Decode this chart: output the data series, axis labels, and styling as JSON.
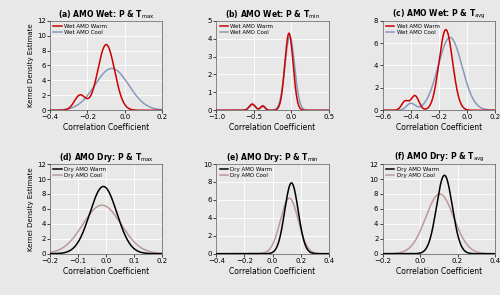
{
  "panels": [
    {
      "label": "(a) AMO Wet: P & T",
      "subscript": "max",
      "line1_label": "Wet AMO Warm",
      "line2_label": "Wet AMO Cool",
      "line1_color": "#cc0000",
      "line2_color": "#8899bb",
      "line1_components": [
        {
          "mean": -0.1,
          "std": 0.045,
          "peak": 8.8
        },
        {
          "mean": -0.24,
          "std": 0.03,
          "peak": 2.0
        }
      ],
      "line2_components": [
        {
          "mean": -0.07,
          "std": 0.09,
          "peak": 5.6
        }
      ],
      "xlim": [
        -0.4,
        0.2
      ],
      "xticks": [
        -0.4,
        -0.2,
        0.0,
        0.2
      ],
      "ylim": [
        0,
        12
      ],
      "yticks": [
        0,
        2,
        4,
        6,
        8,
        10,
        12
      ]
    },
    {
      "label": "(b) AMO Wet: P & T",
      "subscript": "min",
      "line1_label": "Wet AMO Warm",
      "line2_label": "Wet AMO Cool",
      "line1_color": "#cc0000",
      "line2_color": "#8899bb",
      "line1_components": [
        {
          "mean": -0.03,
          "std": 0.055,
          "peak": 4.3
        },
        {
          "mean": -0.52,
          "std": 0.04,
          "peak": 0.35
        },
        {
          "mean": -0.38,
          "std": 0.03,
          "peak": 0.25
        }
      ],
      "line2_components": [
        {
          "mean": -0.02,
          "std": 0.065,
          "peak": 4.1
        },
        {
          "mean": -0.52,
          "std": 0.04,
          "peak": 0.3
        },
        {
          "mean": -0.38,
          "std": 0.03,
          "peak": 0.22
        }
      ],
      "xlim": [
        -1.0,
        0.5
      ],
      "xticks": [
        -1.0,
        -0.5,
        0.0,
        0.5
      ],
      "ylim": [
        0,
        5
      ],
      "yticks": [
        0,
        1,
        2,
        3,
        4,
        5
      ]
    },
    {
      "label": "(c) AMO Wet: P & T",
      "subscript": "avg",
      "line1_label": "Wet AMO Warm",
      "line2_label": "Wet AMO Cool",
      "line1_color": "#cc0000",
      "line2_color": "#8899bb",
      "line1_components": [
        {
          "mean": -0.15,
          "std": 0.048,
          "peak": 7.2
        },
        {
          "mean": -0.37,
          "std": 0.028,
          "peak": 1.3
        },
        {
          "mean": -0.44,
          "std": 0.025,
          "peak": 0.8
        }
      ],
      "line2_components": [
        {
          "mean": -0.12,
          "std": 0.085,
          "peak": 6.5
        },
        {
          "mean": -0.4,
          "std": 0.03,
          "peak": 0.6
        }
      ],
      "xlim": [
        -0.6,
        0.2
      ],
      "xticks": [
        -0.6,
        -0.4,
        -0.2,
        0.0,
        0.2
      ],
      "ylim": [
        0,
        8
      ],
      "yticks": [
        0,
        2,
        4,
        6,
        8
      ]
    },
    {
      "label": "(d) AMO Dry: P & T",
      "subscript": "max",
      "line1_label": "Dry AMO Warm",
      "line2_label": "Dry AMO Cool",
      "line1_color": "#000000",
      "line2_color": "#bb9999",
      "line1_components": [
        {
          "mean": -0.01,
          "std": 0.048,
          "peak": 9.0
        }
      ],
      "line2_components": [
        {
          "mean": -0.015,
          "std": 0.068,
          "peak": 6.5
        }
      ],
      "xlim": [
        -0.2,
        0.2
      ],
      "xticks": [
        -0.2,
        -0.1,
        0.0,
        0.1,
        0.2
      ],
      "ylim": [
        0,
        12
      ],
      "yticks": [
        0,
        2,
        4,
        6,
        8,
        10,
        12
      ]
    },
    {
      "label": "(e) AMO Dry: P & T",
      "subscript": "min",
      "line1_label": "Dry AMO Warm",
      "line2_label": "Dry AMO Cool",
      "line1_color": "#000000",
      "line2_color": "#bb9999",
      "line1_components": [
        {
          "mean": 0.135,
          "std": 0.048,
          "peak": 7.9
        }
      ],
      "line2_components": [
        {
          "mean": 0.12,
          "std": 0.063,
          "peak": 6.2
        }
      ],
      "xlim": [
        -0.4,
        0.4
      ],
      "xticks": [
        -0.4,
        -0.2,
        0.0,
        0.2,
        0.4
      ],
      "ylim": [
        0,
        10
      ],
      "yticks": [
        0,
        2,
        4,
        6,
        8,
        10
      ]
    },
    {
      "label": "(f) AMO Dry: P & T",
      "subscript": "avg",
      "line1_label": "Dry AMO Warm",
      "line2_label": "Dry AMO Cool",
      "line1_color": "#000000",
      "line2_color": "#bb9999",
      "line1_components": [
        {
          "mean": 0.13,
          "std": 0.042,
          "peak": 10.5
        }
      ],
      "line2_components": [
        {
          "mean": 0.105,
          "std": 0.075,
          "peak": 8.0
        }
      ],
      "xlim": [
        -0.2,
        0.4
      ],
      "xticks": [
        -0.2,
        0.0,
        0.2,
        0.4
      ],
      "ylim": [
        0,
        12
      ],
      "yticks": [
        0,
        2,
        4,
        6,
        8,
        10,
        12
      ]
    }
  ],
  "ylabel": "Kernel Density Estimate",
  "xlabel": "Correlation Coefficient",
  "background_color": "#e8e8e8",
  "plot_bg": "#e8e8e8"
}
